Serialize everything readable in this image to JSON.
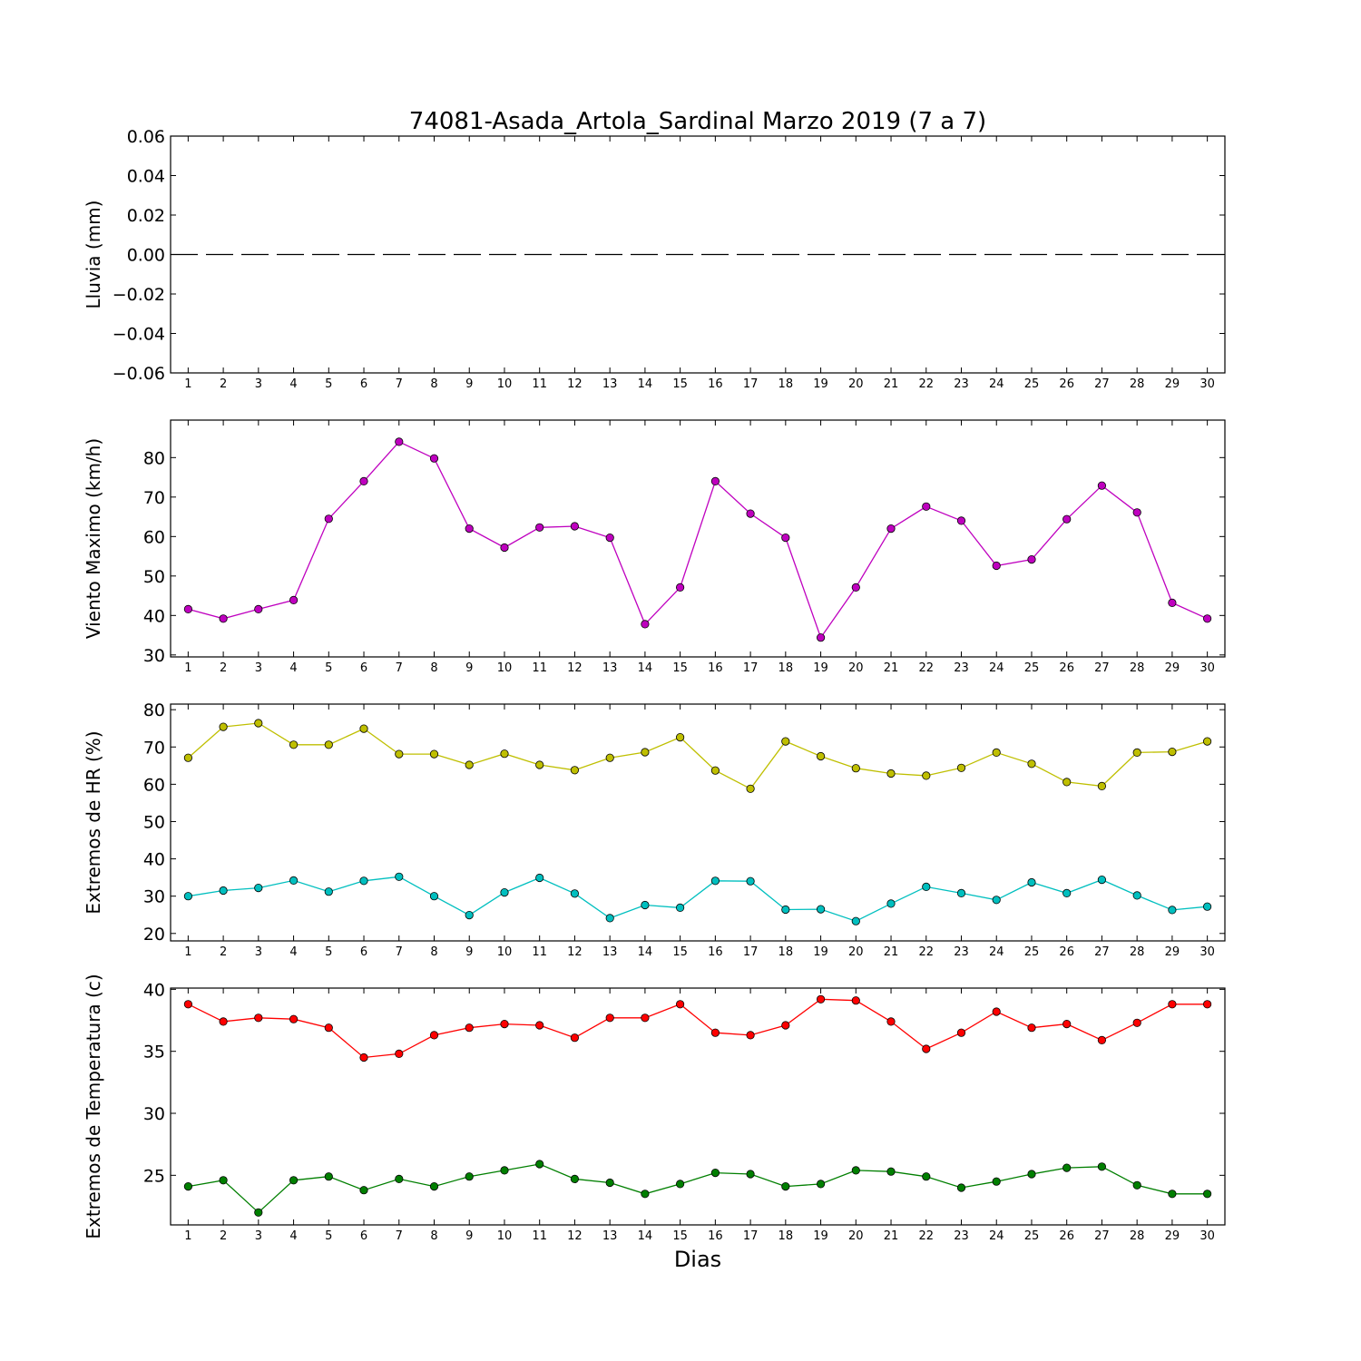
{
  "figure": {
    "title": "74081-Asada_Artola_Sardinal Marzo 2019  (7 a 7)",
    "xlabel": "Dias"
  },
  "chart_data": [
    {
      "type": "line",
      "ylabel": "Lluvia (mm)",
      "x": [
        1,
        2,
        3,
        4,
        5,
        6,
        7,
        8,
        9,
        10,
        11,
        12,
        13,
        14,
        15,
        16,
        17,
        18,
        19,
        20,
        21,
        22,
        23,
        24,
        25,
        26,
        27,
        28,
        29,
        30
      ],
      "xlim": [
        0.5,
        30.5
      ],
      "ylim": [
        -0.06,
        0.06
      ],
      "yticks": [
        -0.06,
        -0.04,
        -0.02,
        0.0,
        0.02,
        0.04,
        0.06
      ],
      "ytick_labels": [
        "−0.06",
        "−0.04",
        "−0.02",
        "0.00",
        "0.02",
        "0.04",
        "0.06"
      ],
      "grid": false,
      "series": [
        {
          "color": "#000000",
          "line": "dashed",
          "marker": false,
          "values": [
            0,
            0,
            0,
            0,
            0,
            0,
            0,
            0,
            0,
            0,
            0,
            0,
            0,
            0,
            0,
            0,
            0,
            0,
            0,
            0,
            0,
            0,
            0,
            0,
            0,
            0,
            0,
            0,
            0,
            0
          ]
        }
      ]
    },
    {
      "type": "line",
      "ylabel": "Viento Maximo (km/h)",
      "x": [
        1,
        2,
        3,
        4,
        5,
        6,
        7,
        8,
        9,
        10,
        11,
        12,
        13,
        14,
        15,
        16,
        17,
        18,
        19,
        20,
        21,
        22,
        23,
        24,
        25,
        26,
        27,
        28,
        29,
        30
      ],
      "xlim": [
        0.5,
        30.5
      ],
      "ylim": [
        29.5,
        89.5
      ],
      "yticks": [
        30,
        40,
        50,
        60,
        70,
        80
      ],
      "ytick_labels": [
        "30",
        "40",
        "50",
        "60",
        "70",
        "80"
      ],
      "grid": false,
      "series": [
        {
          "color": "#bf00bf",
          "line": "solid",
          "marker": true,
          "values": [
            41.6,
            39.2,
            41.6,
            43.9,
            64.5,
            74.0,
            84.0,
            79.8,
            62.0,
            57.2,
            62.3,
            62.6,
            59.7,
            37.8,
            47.1,
            74.0,
            65.8,
            59.7,
            34.4,
            47.1,
            62.0,
            67.6,
            64.0,
            52.6,
            54.2,
            64.4,
            72.9,
            66.1,
            43.2,
            39.2
          ]
        }
      ]
    },
    {
      "type": "line",
      "ylabel": "Extremos de HR (%)",
      "x": [
        1,
        2,
        3,
        4,
        5,
        6,
        7,
        8,
        9,
        10,
        11,
        12,
        13,
        14,
        15,
        16,
        17,
        18,
        19,
        20,
        21,
        22,
        23,
        24,
        25,
        26,
        27,
        28,
        29,
        30
      ],
      "xlim": [
        0.5,
        30.5
      ],
      "ylim": [
        18.0,
        81.5
      ],
      "yticks": [
        20,
        30,
        40,
        50,
        60,
        70,
        80
      ],
      "ytick_labels": [
        "20",
        "30",
        "40",
        "50",
        "60",
        "70",
        "80"
      ],
      "grid": false,
      "series": [
        {
          "color": "#bfbf00",
          "line": "solid",
          "marker": true,
          "values": [
            67.1,
            75.4,
            76.4,
            70.6,
            70.6,
            74.9,
            68.1,
            68.1,
            65.2,
            68.2,
            65.2,
            63.8,
            67.1,
            68.6,
            72.6,
            63.7,
            58.8,
            71.5,
            67.5,
            64.3,
            62.9,
            62.3,
            64.4,
            68.5,
            65.5,
            60.6,
            59.5,
            68.5,
            68.7,
            71.5
          ]
        },
        {
          "color": "#00bfbf",
          "line": "solid",
          "marker": true,
          "values": [
            30.0,
            31.5,
            32.2,
            34.2,
            31.2,
            34.1,
            35.2,
            30.0,
            24.9,
            31.0,
            34.9,
            30.7,
            24.1,
            27.6,
            26.9,
            34.1,
            34.0,
            26.4,
            26.5,
            23.3,
            28.0,
            32.5,
            30.8,
            29.0,
            33.7,
            30.8,
            34.4,
            30.2,
            26.3,
            27.2
          ]
        }
      ]
    },
    {
      "type": "line",
      "ylabel": "Extremos de Temperatura (c)",
      "x": [
        1,
        2,
        3,
        4,
        5,
        6,
        7,
        8,
        9,
        10,
        11,
        12,
        13,
        14,
        15,
        16,
        17,
        18,
        19,
        20,
        21,
        22,
        23,
        24,
        25,
        26,
        27,
        28,
        29,
        30
      ],
      "xlim": [
        0.5,
        30.5
      ],
      "ylim": [
        21.0,
        40.1
      ],
      "yticks": [
        25,
        30,
        35,
        40
      ],
      "ytick_labels": [
        "25",
        "30",
        "35",
        "40"
      ],
      "grid": false,
      "series": [
        {
          "color": "#ff0000",
          "line": "solid",
          "marker": true,
          "values": [
            38.8,
            37.4,
            37.7,
            37.6,
            36.9,
            34.5,
            34.8,
            36.3,
            36.9,
            37.2,
            37.1,
            36.1,
            37.7,
            37.7,
            38.8,
            36.5,
            36.3,
            37.1,
            39.2,
            39.1,
            37.4,
            35.2,
            36.5,
            38.2,
            36.9,
            37.2,
            35.9,
            37.3,
            38.8,
            38.8
          ]
        },
        {
          "color": "#007f00",
          "line": "solid",
          "marker": true,
          "values": [
            24.1,
            24.6,
            22.0,
            24.6,
            24.9,
            23.8,
            24.7,
            24.1,
            24.9,
            25.4,
            25.9,
            24.7,
            24.4,
            23.5,
            24.3,
            25.2,
            25.1,
            24.1,
            24.3,
            25.4,
            25.3,
            24.9,
            24.0,
            24.5,
            25.1,
            25.6,
            25.7,
            24.2,
            23.5,
            23.5
          ]
        }
      ]
    }
  ]
}
